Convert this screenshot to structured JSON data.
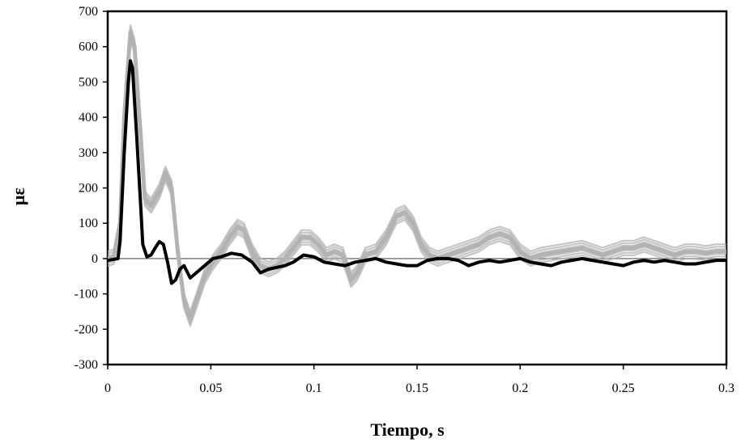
{
  "chart_data": {
    "type": "line",
    "title": "",
    "xlabel": "Tiempo, s",
    "ylabel": "με",
    "xlim": [
      0,
      0.3
    ],
    "ylim": [
      -300,
      700
    ],
    "x_ticks": [
      "0",
      "0.05",
      "0.1",
      "0.15",
      "0.2",
      "0.25",
      "0.3"
    ],
    "x_tick_values": [
      0,
      0.05,
      0.1,
      0.15,
      0.2,
      0.25,
      0.3
    ],
    "y_ticks": [
      "700",
      "600",
      "500",
      "400",
      "300",
      "200",
      "100",
      "0",
      "-100",
      "-200",
      "-300"
    ],
    "y_tick_values": [
      700,
      600,
      500,
      400,
      300,
      200,
      100,
      0,
      -100,
      -200,
      -300
    ],
    "grid": false,
    "legend": "none",
    "zero_line": true,
    "colors": {
      "measured_bundle": "#b3b3b3",
      "reference": "#000000",
      "zero_line": "#808080",
      "frame": "#000000"
    },
    "series": [
      {
        "role": "measured-bundle",
        "points": [
          [
            0,
            0
          ],
          [
            0.003,
            5
          ],
          [
            0.006,
            100
          ],
          [
            0.008,
            400
          ],
          [
            0.011,
            640
          ],
          [
            0.013,
            600
          ],
          [
            0.016,
            350
          ],
          [
            0.018,
            170
          ],
          [
            0.021,
            150
          ],
          [
            0.025,
            190
          ],
          [
            0.028,
            240
          ],
          [
            0.031,
            200
          ],
          [
            0.034,
            20
          ],
          [
            0.037,
            -120
          ],
          [
            0.04,
            -170
          ],
          [
            0.043,
            -120
          ],
          [
            0.047,
            -50
          ],
          [
            0.051,
            -10
          ],
          [
            0.055,
            20
          ],
          [
            0.059,
            60
          ],
          [
            0.063,
            90
          ],
          [
            0.066,
            80
          ],
          [
            0.07,
            20
          ],
          [
            0.074,
            -20
          ],
          [
            0.078,
            -30
          ],
          [
            0.082,
            -20
          ],
          [
            0.086,
            0
          ],
          [
            0.09,
            30
          ],
          [
            0.094,
            60
          ],
          [
            0.098,
            60
          ],
          [
            0.102,
            40
          ],
          [
            0.106,
            10
          ],
          [
            0.11,
            20
          ],
          [
            0.114,
            10
          ],
          [
            0.118,
            -60
          ],
          [
            0.121,
            -40
          ],
          [
            0.125,
            10
          ],
          [
            0.13,
            20
          ],
          [
            0.135,
            60
          ],
          [
            0.14,
            120
          ],
          [
            0.144,
            130
          ],
          [
            0.148,
            100
          ],
          [
            0.152,
            40
          ],
          [
            0.156,
            10
          ],
          [
            0.16,
            0
          ],
          [
            0.165,
            10
          ],
          [
            0.17,
            20
          ],
          [
            0.175,
            30
          ],
          [
            0.18,
            40
          ],
          [
            0.185,
            60
          ],
          [
            0.19,
            70
          ],
          [
            0.195,
            60
          ],
          [
            0.2,
            20
          ],
          [
            0.205,
            0
          ],
          [
            0.21,
            10
          ],
          [
            0.215,
            15
          ],
          [
            0.22,
            20
          ],
          [
            0.225,
            25
          ],
          [
            0.23,
            30
          ],
          [
            0.235,
            20
          ],
          [
            0.24,
            10
          ],
          [
            0.245,
            20
          ],
          [
            0.25,
            30
          ],
          [
            0.255,
            30
          ],
          [
            0.26,
            40
          ],
          [
            0.265,
            30
          ],
          [
            0.27,
            20
          ],
          [
            0.275,
            10
          ],
          [
            0.28,
            20
          ],
          [
            0.285,
            20
          ],
          [
            0.29,
            15
          ],
          [
            0.295,
            20
          ],
          [
            0.3,
            20
          ]
        ]
      },
      {
        "role": "reference",
        "points": [
          [
            0,
            -5
          ],
          [
            0.003,
            -2
          ],
          [
            0.005,
            0
          ],
          [
            0.006,
            50
          ],
          [
            0.008,
            300
          ],
          [
            0.01,
            500
          ],
          [
            0.011,
            560
          ],
          [
            0.012,
            540
          ],
          [
            0.014,
            350
          ],
          [
            0.016,
            150
          ],
          [
            0.017,
            40
          ],
          [
            0.019,
            5
          ],
          [
            0.021,
            10
          ],
          [
            0.023,
            30
          ],
          [
            0.025,
            48
          ],
          [
            0.027,
            40
          ],
          [
            0.029,
            -10
          ],
          [
            0.031,
            -70
          ],
          [
            0.033,
            -60
          ],
          [
            0.035,
            -30
          ],
          [
            0.037,
            -20
          ],
          [
            0.04,
            -55
          ],
          [
            0.043,
            -40
          ],
          [
            0.047,
            -20
          ],
          [
            0.051,
            0
          ],
          [
            0.055,
            5
          ],
          [
            0.06,
            15
          ],
          [
            0.065,
            10
          ],
          [
            0.07,
            -10
          ],
          [
            0.074,
            -40
          ],
          [
            0.078,
            -30
          ],
          [
            0.082,
            -25
          ],
          [
            0.086,
            -20
          ],
          [
            0.09,
            -10
          ],
          [
            0.095,
            10
          ],
          [
            0.1,
            5
          ],
          [
            0.105,
            -10
          ],
          [
            0.11,
            -15
          ],
          [
            0.115,
            -20
          ],
          [
            0.12,
            -10
          ],
          [
            0.125,
            -5
          ],
          [
            0.13,
            0
          ],
          [
            0.135,
            -10
          ],
          [
            0.14,
            -15
          ],
          [
            0.145,
            -20
          ],
          [
            0.15,
            -20
          ],
          [
            0.155,
            -5
          ],
          [
            0.16,
            0
          ],
          [
            0.165,
            0
          ],
          [
            0.17,
            -5
          ],
          [
            0.175,
            -20
          ],
          [
            0.18,
            -10
          ],
          [
            0.185,
            -5
          ],
          [
            0.19,
            -10
          ],
          [
            0.195,
            -5
          ],
          [
            0.2,
            0
          ],
          [
            0.205,
            -10
          ],
          [
            0.21,
            -15
          ],
          [
            0.215,
            -20
          ],
          [
            0.22,
            -10
          ],
          [
            0.225,
            -5
          ],
          [
            0.23,
            0
          ],
          [
            0.235,
            -5
          ],
          [
            0.24,
            -10
          ],
          [
            0.245,
            -15
          ],
          [
            0.25,
            -20
          ],
          [
            0.255,
            -10
          ],
          [
            0.26,
            -5
          ],
          [
            0.265,
            -10
          ],
          [
            0.27,
            -5
          ],
          [
            0.275,
            -10
          ],
          [
            0.28,
            -15
          ],
          [
            0.285,
            -15
          ],
          [
            0.29,
            -10
          ],
          [
            0.295,
            -5
          ],
          [
            0.3,
            -5
          ]
        ]
      }
    ]
  }
}
